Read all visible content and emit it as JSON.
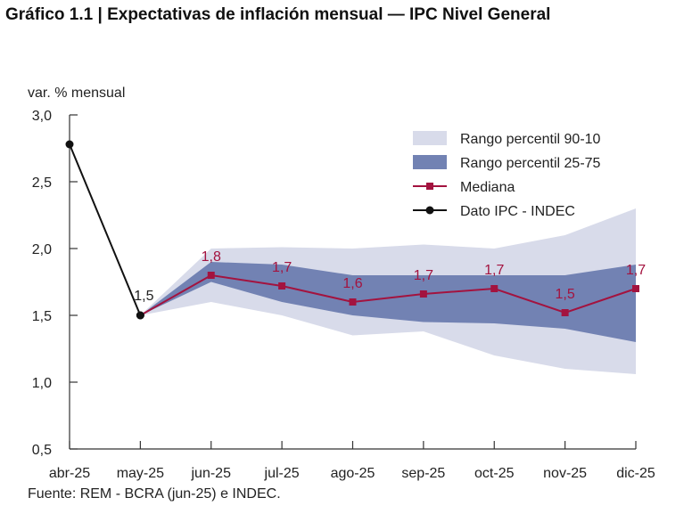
{
  "title": "Gráfico 1.1 | Expectativas de inflación mensual — IPC Nivel General",
  "source": "Fuente: REM - BCRA (jun-25) e INDEC.",
  "colors": {
    "band_90_10": "#d8dbea",
    "band_25_75": "#7282b3",
    "median": "#a3133f",
    "ipc": "#111111",
    "axis": "#333333"
  },
  "chart_data": {
    "type": "line",
    "ylabel": "var. % mensual",
    "ylim": [
      0.5,
      3.0
    ],
    "yticks": [
      3.0,
      2.5,
      2.0,
      1.5,
      1.0,
      0.5
    ],
    "ytick_labels": [
      "3,0",
      "2,5",
      "2,0",
      "1,5",
      "1,0",
      "0,5"
    ],
    "categories": [
      "abr-25",
      "may-25",
      "jun-25",
      "jul-25",
      "ago-25",
      "sep-25",
      "oct-25",
      "nov-25",
      "dic-25"
    ],
    "legend": {
      "placement": "top-right",
      "items": [
        {
          "label": "Rango percentil 90-10",
          "kind": "band_light"
        },
        {
          "label": "Rango percentil 25-75",
          "kind": "band_dark"
        },
        {
          "label": "Mediana",
          "kind": "median"
        },
        {
          "label": "Dato IPC - INDEC",
          "kind": "ipc"
        }
      ]
    },
    "series": [
      {
        "name": "Dato IPC - INDEC",
        "x": [
          "abr-25",
          "may-25"
        ],
        "values": [
          2.78,
          1.5
        ],
        "labels": [
          "",
          "1,5"
        ]
      },
      {
        "name": "Mediana",
        "x": [
          "may-25",
          "jun-25",
          "jul-25",
          "ago-25",
          "sep-25",
          "oct-25",
          "nov-25",
          "dic-25"
        ],
        "values": [
          1.5,
          1.8,
          1.72,
          1.6,
          1.66,
          1.7,
          1.52,
          1.7
        ],
        "labels": [
          "",
          "1,8",
          "1,7",
          "1,6",
          "1,7",
          "1,7",
          "1,5",
          "1,7"
        ]
      },
      {
        "name": "Rango percentil 90-10",
        "x": [
          "may-25",
          "jun-25",
          "jul-25",
          "ago-25",
          "sep-25",
          "oct-25",
          "nov-25",
          "dic-25"
        ],
        "upper": [
          1.5,
          2.0,
          2.01,
          2.0,
          2.03,
          2.0,
          2.1,
          2.3
        ],
        "lower": [
          1.5,
          1.6,
          1.5,
          1.35,
          1.38,
          1.2,
          1.1,
          1.06
        ]
      },
      {
        "name": "Rango percentil 25-75",
        "x": [
          "may-25",
          "jun-25",
          "jul-25",
          "ago-25",
          "sep-25",
          "oct-25",
          "nov-25",
          "dic-25"
        ],
        "upper": [
          1.5,
          1.9,
          1.88,
          1.8,
          1.8,
          1.8,
          1.8,
          1.88
        ],
        "lower": [
          1.5,
          1.75,
          1.6,
          1.5,
          1.45,
          1.44,
          1.4,
          1.3
        ]
      }
    ]
  }
}
